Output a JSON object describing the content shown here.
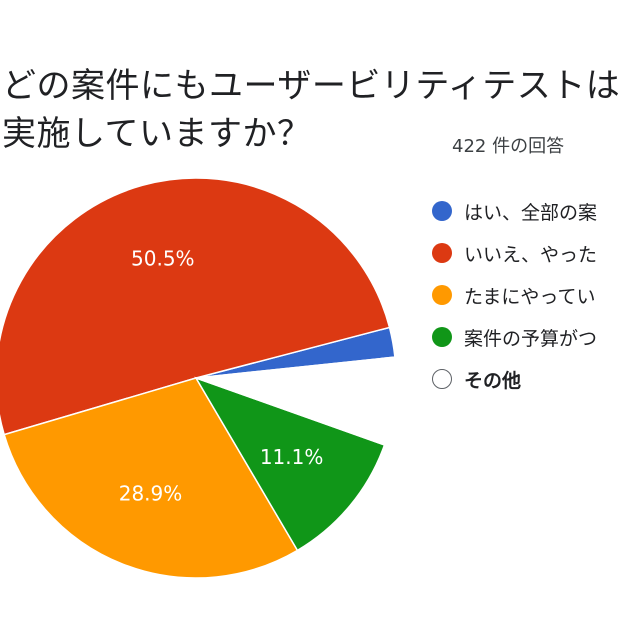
{
  "title_lines": [
    "どの案件にもユーザービリティテストは",
    "実施していますか？"
  ],
  "responses_label": "422 件の回答",
  "chart_data": {
    "type": "pie",
    "title": "どの案件にもユーザービリティテストは実施していますか？",
    "slices": [
      {
        "label": "はい、全部の案",
        "value": 2.4,
        "color": "#3366cc",
        "show_label": false
      },
      {
        "label": "いいえ、やった",
        "value": 50.5,
        "color": "#dc3912",
        "show_label": true,
        "pct_label": "50.5%"
      },
      {
        "label": "たまにやってい",
        "value": 28.9,
        "color": "#ff9900",
        "show_label": true,
        "pct_label": "28.9%"
      },
      {
        "label": "案件の予算がつ",
        "value": 11.1,
        "color": "#109618",
        "show_label": true,
        "pct_label": "11.1%"
      },
      {
        "label": "その他",
        "value": 7.1,
        "color": "#ffffff",
        "show_label": false
      }
    ],
    "legend_position": "right"
  }
}
